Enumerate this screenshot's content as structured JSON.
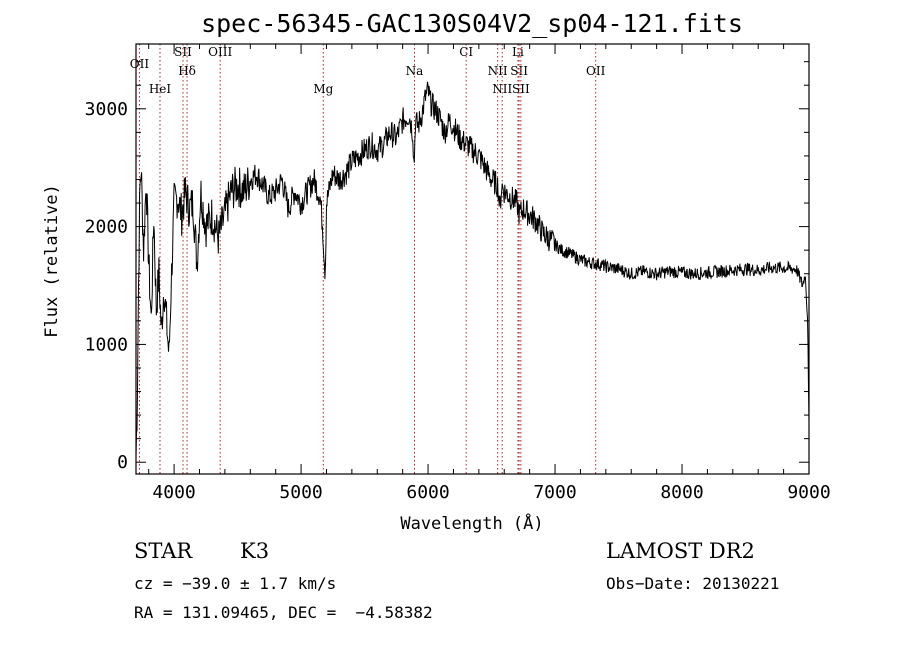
{
  "chart_data": {
    "type": "line",
    "title": "spec-56345-GAC130S04V2_sp04-121.fits",
    "xlabel": "Wavelength (Å)",
    "ylabel": "Flux (relative)",
    "xlim": [
      3700,
      9000
    ],
    "ylim": [
      -100,
      3550
    ],
    "xticks": [
      4000,
      5000,
      6000,
      7000,
      8000,
      9000
    ],
    "yticks": [
      0,
      1000,
      2000,
      3000
    ],
    "series": [
      {
        "x": [
          3700,
          3710,
          3720,
          3730,
          3740,
          3760,
          3780,
          3800,
          3820,
          3840,
          3860,
          3880,
          3900,
          3920,
          3940,
          3960,
          3980,
          4000,
          4030,
          4060,
          4090,
          4120,
          4150,
          4180,
          4210,
          4250,
          4300,
          4350,
          4400,
          4450,
          4500,
          4550,
          4600,
          4650,
          4700,
          4750,
          4800,
          4850,
          4900,
          4950,
          5000,
          5050,
          5100,
          5150,
          5170,
          5190,
          5200,
          5250,
          5300,
          5350,
          5400,
          5450,
          5500,
          5550,
          5600,
          5650,
          5700,
          5750,
          5800,
          5850,
          5880,
          5890,
          5900,
          5920,
          5950,
          5980,
          6000,
          6020,
          6050,
          6080,
          6100,
          6130,
          6170,
          6200,
          6250,
          6300,
          6350,
          6400,
          6450,
          6500,
          6550,
          6565,
          6580,
          6600,
          6650,
          6700,
          6720,
          6750,
          6800,
          6850,
          6900,
          6950,
          7000,
          7050,
          7100,
          7150,
          7200,
          7250,
          7300,
          7350,
          7400,
          7450,
          7500,
          7550,
          7600,
          7700,
          7800,
          7900,
          8000,
          8100,
          8200,
          8300,
          8400,
          8500,
          8600,
          8700,
          8800,
          8900,
          8950,
          8970,
          8990,
          9000
        ],
        "values": [
          50,
          500,
          1500,
          2300,
          2500,
          1800,
          2400,
          1700,
          1200,
          2100,
          1300,
          1600,
          1100,
          1500,
          1200,
          900,
          1600,
          2200,
          2250,
          2100,
          2300,
          2150,
          2200,
          1700,
          2300,
          2000,
          2100,
          1900,
          2100,
          2300,
          2350,
          2300,
          2400,
          2450,
          2350,
          2250,
          2300,
          2400,
          2150,
          2300,
          2200,
          2300,
          2400,
          2250,
          2000,
          1600,
          2200,
          2450,
          2400,
          2450,
          2550,
          2600,
          2650,
          2700,
          2650,
          2700,
          2800,
          2750,
          2900,
          2950,
          2800,
          2500,
          2900,
          2850,
          2950,
          3100,
          3150,
          3050,
          3000,
          2950,
          2900,
          2800,
          2900,
          2850,
          2750,
          2700,
          2650,
          2600,
          2500,
          2400,
          2350,
          2150,
          2350,
          2300,
          2250,
          2200,
          2100,
          2150,
          2100,
          2050,
          1950,
          1900,
          1850,
          1800,
          1780,
          1750,
          1720,
          1700,
          1690,
          1680,
          1660,
          1650,
          1640,
          1620,
          1600,
          1620,
          1600,
          1620,
          1610,
          1600,
          1610,
          1620,
          1630,
          1640,
          1630,
          1650,
          1650,
          1640,
          1500,
          1600,
          1200,
          300
        ]
      }
    ],
    "lines": [
      {
        "name": "OII",
        "x": 3727
      },
      {
        "name": "HeI",
        "x": 3889
      },
      {
        "name": "SII",
        "x": 4070
      },
      {
        "name": "Hδ",
        "x": 4102
      },
      {
        "name": "OIII",
        "x": 4363
      },
      {
        "name": "Mg",
        "x": 5175
      },
      {
        "name": "Na",
        "x": 5893
      },
      {
        "name": "CI",
        "x": 6300
      },
      {
        "name": "NII",
        "x": 6548
      },
      {
        "name": "NII",
        "x": 6584
      },
      {
        "name": "Li",
        "x": 6708
      },
      {
        "name": "SII",
        "x": 6717
      },
      {
        "name": "SII",
        "x": 6731
      },
      {
        "name": "OII",
        "x": 7320
      }
    ]
  },
  "info": {
    "class": "STAR",
    "subclass": "K3",
    "survey": "LAMOST DR2",
    "cz": "cz = −39.0 ± 1.7 km/s",
    "obs_date": "Obs−Date: 20130221",
    "radec": "RA = 131.09465, DEC =  −4.58382"
  },
  "colors": {
    "spectrum": "#000000",
    "line_marker": "#b22222",
    "axis": "#000000"
  }
}
